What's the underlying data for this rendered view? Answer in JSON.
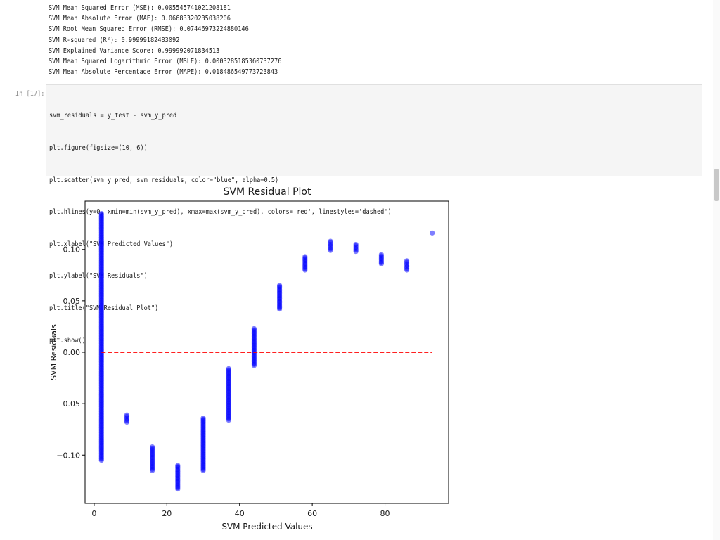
{
  "metrics_output": [
    "SVM Mean Squared Error (MSE): 0.005545741021208181",
    "SVM Mean Absolute Error (MAE): 0.06683320235038206",
    "SVM Root Mean Squared Error (RMSE): 0.07446973224880146",
    "SVM R-squared (R²): 0.99999182483092",
    "SVM Explained Variance Score: 0.999992071834513",
    "SVM Mean Squared Logarithmic Error (MSLE): 0.0003285185360737276",
    "SVM Mean Absolute Percentage Error (MAPE): 0.018486549773723843"
  ],
  "cell": {
    "prompt": "In [17]:",
    "code_lines": [
      "svm_residuals = y_test - svm_y_pred",
      "plt.figure(figsize=(10, 6))",
      "plt.scatter(svm_y_pred, svm_residuals, color=\"blue\", alpha=0.5)",
      "plt.hlines(y=0, xmin=min(svm_y_pred), xmax=max(svm_y_pred), colors='red', linestyles='dashed')",
      "plt.xlabel(\"SVM Predicted Values\")",
      "plt.ylabel(\"SVM Residuals\")",
      "plt.title(\"SVM Residual Plot\")",
      "plt.show()"
    ]
  },
  "chart_data": {
    "type": "scatter",
    "title": "SVM Residual Plot",
    "xlabel": "SVM Predicted Values",
    "ylabel": "SVM Residuals",
    "xlim": [
      -2.5,
      97.5
    ],
    "ylim": [
      -0.147,
      0.147
    ],
    "xticks": [
      0,
      20,
      40,
      60,
      80
    ],
    "yticks": [
      -0.1,
      -0.05,
      0.0,
      0.05,
      0.1
    ],
    "ytick_labels": [
      "−0.10",
      "−0.05",
      "0.00",
      "0.05",
      "0.10"
    ],
    "grid": false,
    "point_color": "#0000ff",
    "point_alpha": 0.5,
    "hline": {
      "y": 0,
      "xmin": 2,
      "xmax": 93,
      "color": "#ff0000",
      "style": "dashed"
    },
    "clusters": [
      {
        "x": 2,
        "ymin": -0.105,
        "ymax": 0.135
      },
      {
        "x": 9,
        "ymin": -0.068,
        "ymax": -0.061
      },
      {
        "x": 16,
        "ymin": -0.115,
        "ymax": -0.092
      },
      {
        "x": 23,
        "ymin": -0.133,
        "ymax": -0.11
      },
      {
        "x": 30,
        "ymin": -0.115,
        "ymax": -0.064
      },
      {
        "x": 37,
        "ymin": -0.066,
        "ymax": -0.016
      },
      {
        "x": 44,
        "ymin": -0.013,
        "ymax": 0.023
      },
      {
        "x": 51,
        "ymin": 0.042,
        "ymax": 0.065
      },
      {
        "x": 58,
        "ymin": 0.08,
        "ymax": 0.093
      },
      {
        "x": 65,
        "ymin": 0.099,
        "ymax": 0.108
      },
      {
        "x": 72,
        "ymin": 0.098,
        "ymax": 0.105
      },
      {
        "x": 79,
        "ymin": 0.086,
        "ymax": 0.095
      },
      {
        "x": 86,
        "ymin": 0.08,
        "ymax": 0.089
      },
      {
        "x": 93,
        "ymin": 0.116,
        "ymax": 0.116
      }
    ]
  }
}
